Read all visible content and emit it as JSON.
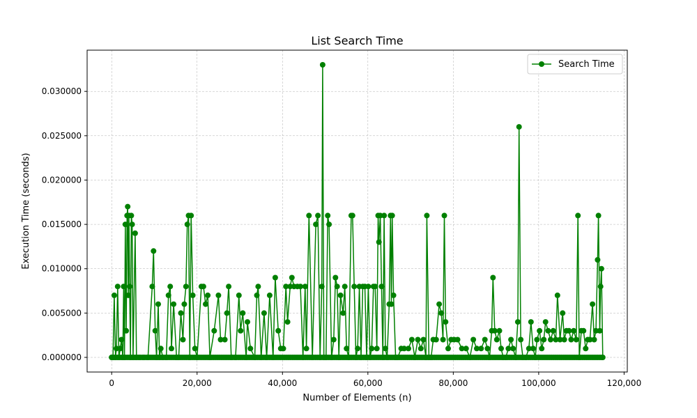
{
  "chart_data": {
    "type": "line",
    "title": "List Search Time",
    "xlabel": "Number of Elements (n)",
    "ylabel": "Execution Time (seconds)",
    "xlim": [
      -5750,
      120750
    ],
    "ylim": [
      -0.00165,
      0.03465
    ],
    "xticks": [
      0,
      20000,
      40000,
      60000,
      80000,
      100000,
      120000
    ],
    "xtick_labels": [
      "0",
      "20,000",
      "40,000",
      "60,000",
      "80,000",
      "100,000",
      "120,000"
    ],
    "yticks": [
      0,
      0.005,
      0.01,
      0.015,
      0.02,
      0.025,
      0.03
    ],
    "ytick_labels": [
      "0.000000",
      "0.005000",
      "0.010000",
      "0.015000",
      "0.020000",
      "0.025000",
      "0.030000"
    ],
    "grid": true,
    "legend_position": "top-right",
    "colors": {
      "series": "#008000",
      "grid": "#b0b0b0",
      "axes": "#000000"
    },
    "series": [
      {
        "name": "Search Time",
        "marker": "circle",
        "points": [
          [
            0,
            0
          ],
          [
            300,
            0
          ],
          [
            600,
            0.007
          ],
          [
            900,
            0
          ],
          [
            1100,
            0.001
          ],
          [
            1400,
            0.008
          ],
          [
            1700,
            0
          ],
          [
            2000,
            0.001
          ],
          [
            2300,
            0.002
          ],
          [
            2600,
            0
          ],
          [
            2800,
            0.008
          ],
          [
            3000,
            0
          ],
          [
            3200,
            0.015
          ],
          [
            3400,
            0.003
          ],
          [
            3600,
            0.016
          ],
          [
            3750,
            0.017
          ],
          [
            3900,
            0.007
          ],
          [
            4050,
            0.016
          ],
          [
            4200,
            0.008
          ],
          [
            4400,
            0
          ],
          [
            4600,
            0.016
          ],
          [
            4800,
            0.015
          ],
          [
            5000,
            0
          ],
          [
            5500,
            0.014
          ],
          [
            5800,
            0
          ],
          [
            6500,
            0
          ],
          [
            7500,
            0
          ],
          [
            8500,
            0
          ],
          [
            9500,
            0.008
          ],
          [
            9800,
            0.012
          ],
          [
            10200,
            0.003
          ],
          [
            10500,
            0
          ],
          [
            10900,
            0.006
          ],
          [
            11200,
            0
          ],
          [
            11500,
            0.001
          ],
          [
            12000,
            0
          ],
          [
            12800,
            0
          ],
          [
            13300,
            0.007
          ],
          [
            13700,
            0.008
          ],
          [
            14000,
            0.001
          ],
          [
            14500,
            0.006
          ],
          [
            15200,
            0
          ],
          [
            15700,
            0
          ],
          [
            16200,
            0.005
          ],
          [
            16700,
            0.002
          ],
          [
            17000,
            0.006
          ],
          [
            17400,
            0.008
          ],
          [
            17700,
            0.015
          ],
          [
            18000,
            0.016
          ],
          [
            18300,
            0
          ],
          [
            18600,
            0.016
          ],
          [
            19000,
            0.007
          ],
          [
            19500,
            0.001
          ],
          [
            20000,
            0
          ],
          [
            21000,
            0.008
          ],
          [
            21500,
            0.008
          ],
          [
            22000,
            0.006
          ],
          [
            22500,
            0.007
          ],
          [
            23000,
            0
          ],
          [
            24000,
            0.003
          ],
          [
            25000,
            0.007
          ],
          [
            25500,
            0.002
          ],
          [
            26500,
            0.002
          ],
          [
            27000,
            0.005
          ],
          [
            27400,
            0.008
          ],
          [
            28000,
            0
          ],
          [
            29000,
            0
          ],
          [
            29800,
            0.007
          ],
          [
            30200,
            0.003
          ],
          [
            30700,
            0.005
          ],
          [
            31500,
            0
          ],
          [
            31800,
            0.004
          ],
          [
            32500,
            0.001
          ],
          [
            33500,
            0
          ],
          [
            34000,
            0.007
          ],
          [
            34300,
            0.008
          ],
          [
            35000,
            0
          ],
          [
            35700,
            0.005
          ],
          [
            36300,
            0
          ],
          [
            37000,
            0.007
          ],
          [
            37800,
            0
          ],
          [
            38300,
            0.009
          ],
          [
            39000,
            0.003
          ],
          [
            39600,
            0.001
          ],
          [
            40200,
            0.001
          ],
          [
            40800,
            0.008
          ],
          [
            41200,
            0.004
          ],
          [
            41800,
            0.008
          ],
          [
            42200,
            0.009
          ],
          [
            42700,
            0.008
          ],
          [
            43500,
            0.008
          ],
          [
            44200,
            0.008
          ],
          [
            44800,
            0
          ],
          [
            45300,
            0.008
          ],
          [
            45600,
            0.001
          ],
          [
            46200,
            0.016
          ],
          [
            47000,
            0
          ],
          [
            47800,
            0.015
          ],
          [
            48300,
            0.016
          ],
          [
            48800,
            0
          ],
          [
            49200,
            0.008
          ],
          [
            49400,
            0.033
          ],
          [
            49700,
            0
          ],
          [
            50200,
            0
          ],
          [
            50600,
            0.016
          ],
          [
            50900,
            0.015
          ],
          [
            51500,
            0
          ],
          [
            52000,
            0.002
          ],
          [
            52400,
            0.009
          ],
          [
            52800,
            0.008
          ],
          [
            53200,
            0
          ],
          [
            53600,
            0.007
          ],
          [
            54200,
            0.005
          ],
          [
            54600,
            0.008
          ],
          [
            55000,
            0.001
          ],
          [
            55500,
            0
          ],
          [
            56100,
            0.016
          ],
          [
            56400,
            0.016
          ],
          [
            56800,
            0.008
          ],
          [
            57200,
            0
          ],
          [
            57600,
            0.001
          ],
          [
            58000,
            0.008
          ],
          [
            58400,
            0
          ],
          [
            58800,
            0.008
          ],
          [
            59300,
            0.008
          ],
          [
            59700,
            0
          ],
          [
            60100,
            0.008
          ],
          [
            60500,
            0
          ],
          [
            60900,
            0.001
          ],
          [
            61300,
            0.008
          ],
          [
            61700,
            0.008
          ],
          [
            62100,
            0.001
          ],
          [
            62400,
            0.016
          ],
          [
            62600,
            0.013
          ],
          [
            62900,
            0.016
          ],
          [
            63200,
            0.008
          ],
          [
            63500,
            0
          ],
          [
            63800,
            0.016
          ],
          [
            64100,
            0.001
          ],
          [
            64500,
            0
          ],
          [
            65000,
            0.006
          ],
          [
            65300,
            0.016
          ],
          [
            65500,
            0.006
          ],
          [
            65700,
            0.016
          ],
          [
            66000,
            0.007
          ],
          [
            66500,
            0
          ],
          [
            67000,
            0
          ],
          [
            67800,
            0.001
          ],
          [
            68500,
            0.001
          ],
          [
            69500,
            0.001
          ],
          [
            70300,
            0.002
          ],
          [
            71000,
            0
          ],
          [
            71700,
            0.002
          ],
          [
            72400,
            0.001
          ],
          [
            73000,
            0.002
          ],
          [
            73600,
            0
          ],
          [
            73800,
            0.016
          ],
          [
            74300,
            0
          ],
          [
            74800,
            0
          ],
          [
            75300,
            0.002
          ],
          [
            76000,
            0.002
          ],
          [
            76700,
            0.006
          ],
          [
            77200,
            0.005
          ],
          [
            77600,
            0.002
          ],
          [
            77900,
            0.016
          ],
          [
            78200,
            0.004
          ],
          [
            78800,
            0.001
          ],
          [
            79500,
            0.002
          ],
          [
            80200,
            0.002
          ],
          [
            81000,
            0.002
          ],
          [
            82000,
            0.001
          ],
          [
            83000,
            0.001
          ],
          [
            83900,
            0
          ],
          [
            84700,
            0.002
          ],
          [
            85500,
            0.001
          ],
          [
            86500,
            0.001
          ],
          [
            87400,
            0.002
          ],
          [
            88000,
            0.001
          ],
          [
            88500,
            0
          ],
          [
            89000,
            0.003
          ],
          [
            89300,
            0.009
          ],
          [
            89700,
            0.003
          ],
          [
            90200,
            0.002
          ],
          [
            90800,
            0.003
          ],
          [
            91200,
            0.001
          ],
          [
            91700,
            0
          ],
          [
            92300,
            0
          ],
          [
            92900,
            0.001
          ],
          [
            93500,
            0.002
          ],
          [
            94000,
            0.001
          ],
          [
            94600,
            0
          ],
          [
            95100,
            0.004
          ],
          [
            95400,
            0.026
          ],
          [
            95800,
            0.002
          ],
          [
            96300,
            0
          ],
          [
            97000,
            0
          ],
          [
            97700,
            0.001
          ],
          [
            98200,
            0.004
          ],
          [
            98700,
            0.001
          ],
          [
            99200,
            0
          ],
          [
            99600,
            0.002
          ],
          [
            100200,
            0.003
          ],
          [
            100700,
            0.001
          ],
          [
            101200,
            0.002
          ],
          [
            101600,
            0.004
          ],
          [
            102200,
            0.003
          ],
          [
            102800,
            0.002
          ],
          [
            103400,
            0.003
          ],
          [
            104000,
            0.002
          ],
          [
            104400,
            0.007
          ],
          [
            105000,
            0.002
          ],
          [
            105600,
            0.005
          ],
          [
            106000,
            0.002
          ],
          [
            106500,
            0.003
          ],
          [
            107100,
            0.003
          ],
          [
            107600,
            0.002
          ],
          [
            108200,
            0.003
          ],
          [
            108800,
            0.002
          ],
          [
            109200,
            0.016
          ],
          [
            109500,
            0
          ],
          [
            110000,
            0.003
          ],
          [
            110500,
            0.003
          ],
          [
            111000,
            0.001
          ],
          [
            111500,
            0.002
          ],
          [
            112000,
            0.002
          ],
          [
            112600,
            0.006
          ],
          [
            113000,
            0.002
          ],
          [
            113400,
            0.003
          ],
          [
            113800,
            0.011
          ],
          [
            114000,
            0.016
          ],
          [
            114300,
            0.003
          ],
          [
            114500,
            0.008
          ],
          [
            114700,
            0.01
          ],
          [
            115000,
            0
          ]
        ]
      }
    ]
  }
}
